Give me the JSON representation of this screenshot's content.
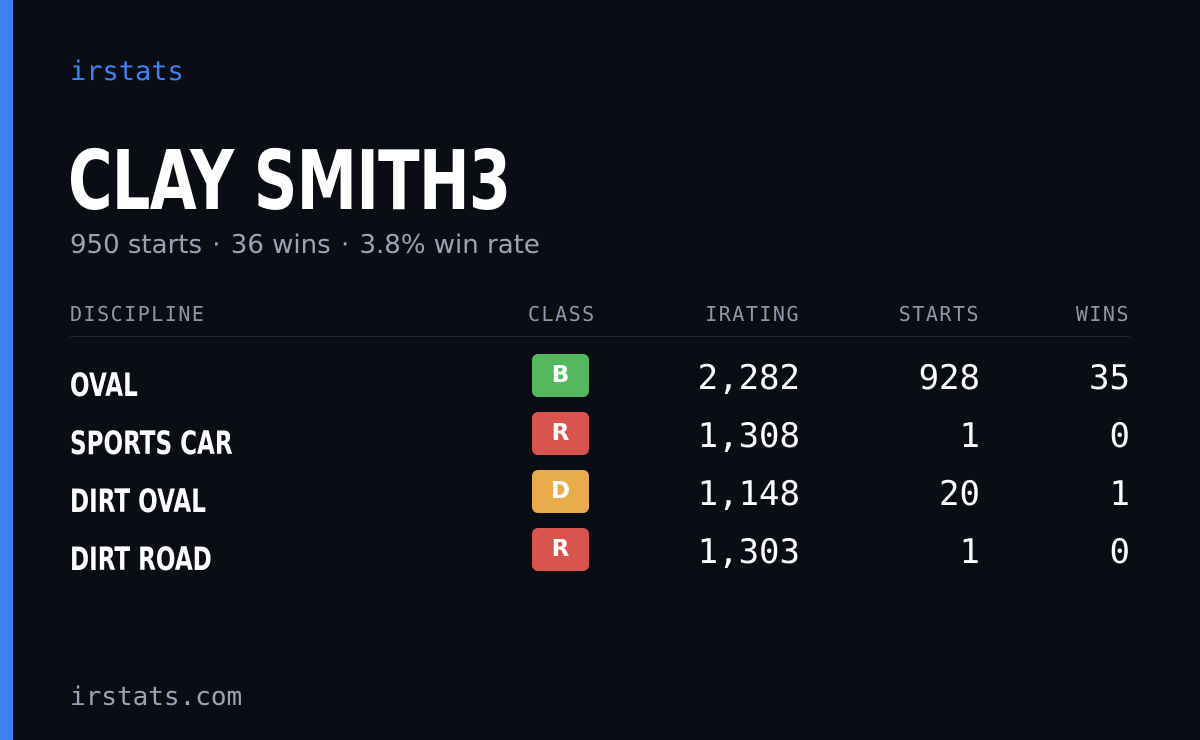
{
  "brand": "irstats",
  "driver": {
    "name": "CLAY SMITH3"
  },
  "summary": {
    "starts": "950 starts",
    "wins": "36 wins",
    "win_rate": "3.8% win rate",
    "separator": "·"
  },
  "table": {
    "headers": {
      "discipline": "DISCIPLINE",
      "class": "CLASS",
      "irating": "IRATING",
      "starts": "STARTS",
      "wins": "WINS"
    },
    "rows": [
      {
        "discipline": "OVAL",
        "class": "B",
        "class_color": "#56b85e",
        "irating": "2,282",
        "starts": "928",
        "wins": "35"
      },
      {
        "discipline": "SPORTS CAR",
        "class": "R",
        "class_color": "#d9534f",
        "irating": "1,308",
        "starts": "1",
        "wins": "0"
      },
      {
        "discipline": "DIRT OVAL",
        "class": "D",
        "class_color": "#e8ad4a",
        "irating": "1,148",
        "starts": "20",
        "wins": "1"
      },
      {
        "discipline": "DIRT ROAD",
        "class": "R",
        "class_color": "#d9534f",
        "irating": "1,303",
        "starts": "1",
        "wins": "0"
      }
    ]
  },
  "footer": {
    "url": "irstats.com"
  },
  "colors": {
    "background": "#0b0d14",
    "accent": "#3d83f5",
    "muted_text": "#9aa3b5",
    "primary_text": "#ffffff"
  }
}
